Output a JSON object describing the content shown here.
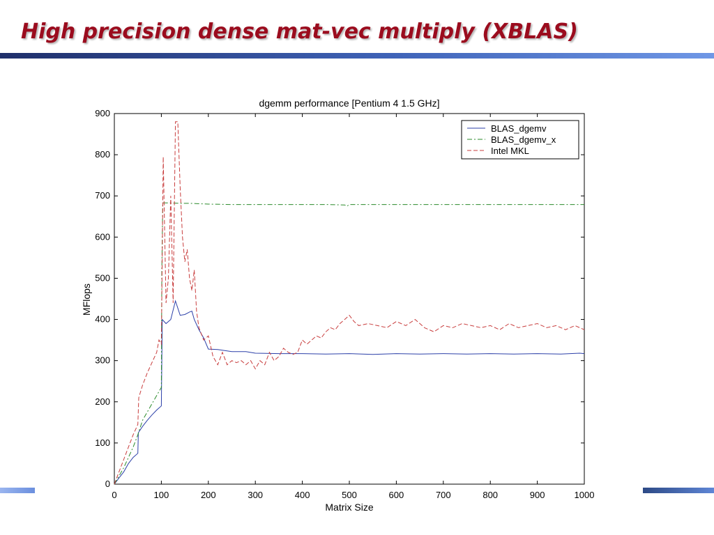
{
  "slide": {
    "title": "High precision dense mat-vec multiply (XBLAS)"
  },
  "colors": {
    "title": "#9b0c1e",
    "rule_dark": "#1f2f6a",
    "rule_light": "#6f97e6"
  },
  "chart_data": {
    "type": "line",
    "title": "dgemm performance [Pentium 4 1.5 GHz]",
    "xlabel": "Matrix Size",
    "ylabel": "MFlops",
    "xlim": [
      0,
      1000
    ],
    "ylim": [
      0,
      900
    ],
    "xticks": [
      0,
      100,
      200,
      300,
      400,
      500,
      600,
      700,
      800,
      900,
      1000
    ],
    "yticks": [
      0,
      100,
      200,
      300,
      400,
      500,
      600,
      700,
      800,
      900
    ],
    "grid": false,
    "legend_position": "top-right",
    "series": [
      {
        "name": "BLAS_dgemv",
        "color": "#2b3fa8",
        "dash": "solid",
        "x": [
          0,
          10,
          20,
          30,
          40,
          50,
          51,
          60,
          70,
          80,
          90,
          100,
          102,
          110,
          120,
          130,
          140,
          150,
          160,
          165,
          170,
          180,
          190,
          200,
          220,
          250,
          280,
          300,
          350,
          400,
          450,
          500,
          550,
          600,
          650,
          700,
          750,
          800,
          850,
          900,
          950,
          990,
          1000
        ],
        "y": [
          0,
          15,
          30,
          50,
          65,
          75,
          125,
          140,
          155,
          168,
          180,
          190,
          400,
          390,
          400,
          445,
          410,
          412,
          418,
          420,
          400,
          375,
          355,
          328,
          327,
          322,
          322,
          318,
          317,
          317,
          316,
          317,
          315,
          317,
          316,
          317,
          316,
          317,
          316,
          317,
          316,
          318,
          317
        ]
      },
      {
        "name": "BLAS_dgemv_x",
        "color": "#2a8a2a",
        "dash": "dashdot",
        "x": [
          0,
          20,
          40,
          50,
          60,
          80,
          100,
          101,
          103,
          110,
          120,
          140,
          160,
          200,
          250,
          300,
          350,
          400,
          450,
          490,
          495,
          500,
          550,
          600,
          650,
          700,
          750,
          800,
          850,
          900,
          950,
          1000
        ],
        "y": [
          0,
          40,
          90,
          120,
          155,
          195,
          235,
          520,
          683,
          683,
          683,
          682,
          682,
          680,
          679,
          679,
          679,
          679,
          679,
          678,
          675,
          679,
          679,
          679,
          679,
          679,
          679,
          679,
          679,
          679,
          679,
          679
        ]
      },
      {
        "name": "Intel MKL",
        "color": "#c83c3c",
        "dash": "dashed",
        "x": [
          0,
          10,
          20,
          30,
          40,
          50,
          52,
          60,
          70,
          80,
          90,
          95,
          100,
          104,
          110,
          115,
          120,
          125,
          130,
          135,
          140,
          145,
          150,
          155,
          160,
          165,
          170,
          175,
          180,
          190,
          200,
          210,
          220,
          230,
          240,
          250,
          260,
          270,
          280,
          290,
          300,
          310,
          320,
          330,
          340,
          350,
          360,
          370,
          380,
          390,
          400,
          410,
          420,
          430,
          440,
          450,
          460,
          470,
          480,
          490,
          500,
          510,
          520,
          540,
          560,
          580,
          600,
          620,
          640,
          660,
          680,
          700,
          720,
          740,
          760,
          780,
          800,
          820,
          840,
          860,
          880,
          900,
          920,
          940,
          960,
          980,
          1000
        ],
        "y": [
          0,
          30,
          60,
          90,
          120,
          145,
          210,
          240,
          270,
          295,
          320,
          350,
          340,
          795,
          440,
          500,
          700,
          440,
          880,
          880,
          720,
          600,
          540,
          570,
          500,
          470,
          520,
          420,
          380,
          350,
          360,
          310,
          290,
          320,
          290,
          300,
          295,
          300,
          290,
          300,
          280,
          300,
          290,
          320,
          300,
          310,
          330,
          320,
          315,
          320,
          350,
          340,
          350,
          360,
          355,
          370,
          380,
          375,
          390,
          400,
          410,
          395,
          385,
          390,
          385,
          380,
          395,
          385,
          400,
          380,
          370,
          385,
          380,
          390,
          385,
          380,
          385,
          375,
          390,
          380,
          385,
          390,
          380,
          385,
          375,
          385,
          375
        ]
      }
    ]
  }
}
